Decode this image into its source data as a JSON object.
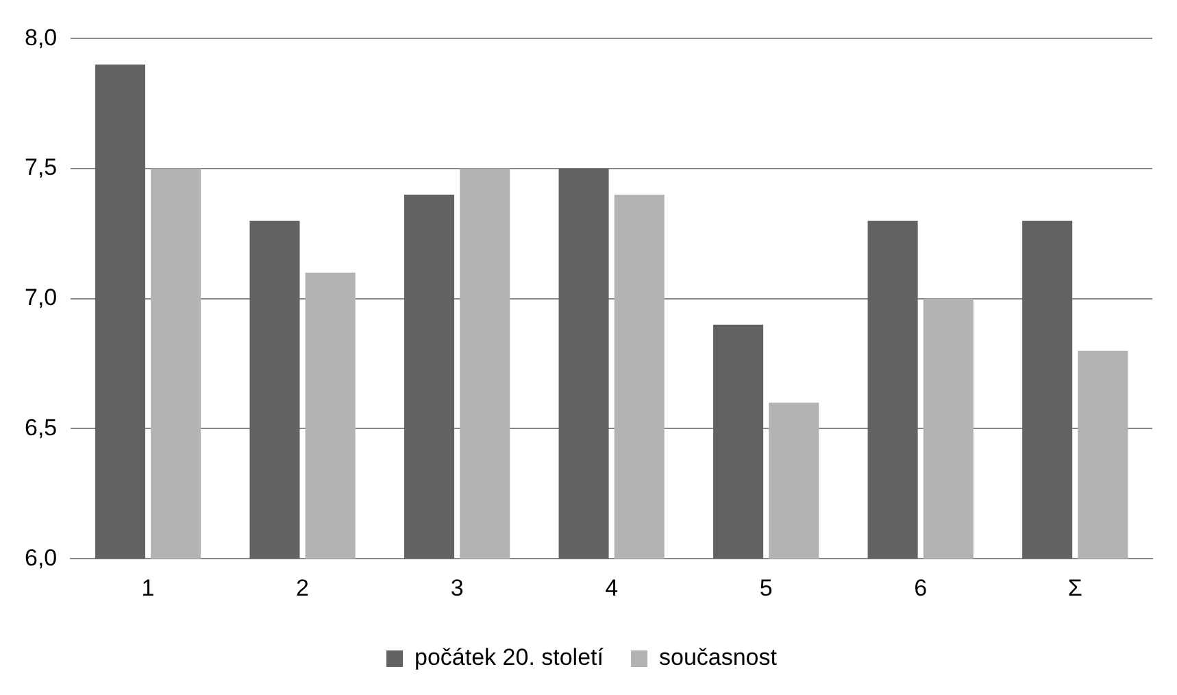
{
  "chart_data": {
    "type": "bar",
    "categories": [
      "1",
      "2",
      "3",
      "4",
      "5",
      "6",
      "Σ"
    ],
    "series": [
      {
        "name": "počátek 20. století",
        "color": "#626262",
        "values": [
          7.9,
          7.3,
          7.4,
          7.5,
          6.9,
          7.3,
          7.3
        ]
      },
      {
        "name": "současnost",
        "color": "#b3b3b3",
        "values": [
          7.5,
          7.1,
          7.5,
          7.4,
          6.6,
          7.0,
          6.8
        ]
      }
    ],
    "ylim": [
      6.0,
      8.0
    ],
    "yticks": [
      {
        "value": 6.0,
        "label": "6,0"
      },
      {
        "value": 6.5,
        "label": "6,5"
      },
      {
        "value": 7.0,
        "label": "7,0"
      },
      {
        "value": 7.5,
        "label": "7,5"
      },
      {
        "value": 8.0,
        "label": "8,0"
      }
    ],
    "grid": "y",
    "legend": "bottom"
  }
}
